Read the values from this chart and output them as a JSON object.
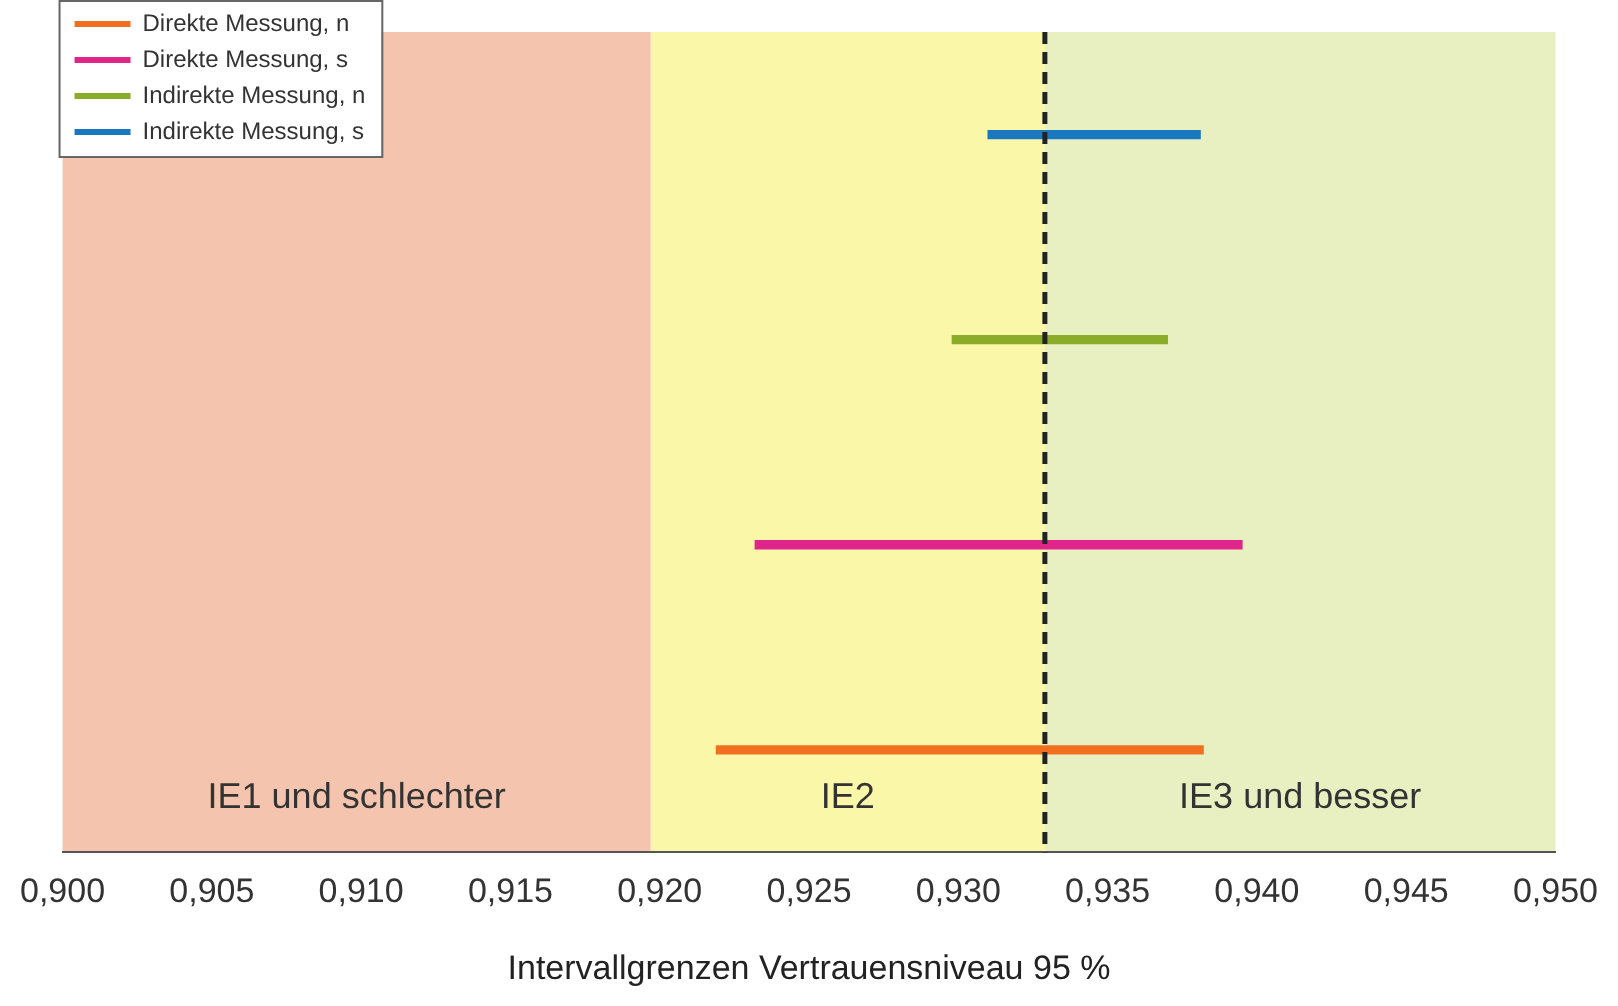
{
  "chart_data": {
    "type": "bar",
    "orientation": "horizontal",
    "xlabel": "Intervallgrenzen Vertrauensniveau 95 %",
    "categories": [
      null,
      null,
      null,
      null
    ],
    "series": [
      {
        "name": "Direkte Messung, n",
        "color": "#f07020",
        "base": [
          null,
          null,
          null,
          0.9219
        ],
        "values": [
          null,
          null,
          null,
          0.0163
        ]
      },
      {
        "name": "Direkte Messung, s",
        "color": "#e0258a",
        "base": [
          null,
          null,
          0.9232,
          null
        ],
        "values": [
          null,
          null,
          0.0163,
          null
        ]
      },
      {
        "name": "Indirekte Messung, n",
        "color": "#8aac28",
        "base": [
          null,
          0.9298,
          null,
          null
        ],
        "values": [
          null,
          0.0072,
          null,
          null
        ]
      },
      {
        "name": "Indirekte Messung, s",
        "color": "#1a78c0",
        "base": [
          0.931,
          null,
          null,
          null
        ],
        "values": [
          0.0071,
          null,
          null,
          null
        ]
      }
    ],
    "xlim": [
      0.9,
      0.95
    ],
    "xticks": [
      {
        "value": 0.9,
        "label": "0,900"
      },
      {
        "value": 0.905,
        "label": "0,905"
      },
      {
        "value": 0.91,
        "label": "0,910"
      },
      {
        "value": 0.915,
        "label": "0,915"
      },
      {
        "value": 0.92,
        "label": "0,920"
      },
      {
        "value": 0.925,
        "label": "0,925"
      },
      {
        "value": 0.93,
        "label": "0,930"
      },
      {
        "value": 0.935,
        "label": "0,935"
      },
      {
        "value": 0.94,
        "label": "0,940"
      },
      {
        "value": 0.945,
        "label": "0,945"
      },
      {
        "value": 0.95,
        "label": "0,950"
      }
    ],
    "bands": [
      {
        "axis": "x",
        "from": 0.9,
        "to": 0.9197,
        "label": "IE1 und schlechter",
        "color": "#f5c4ae"
      },
      {
        "axis": "x",
        "from": 0.9197,
        "to": 0.9329,
        "label": "IE2",
        "color": "#fbf7a8"
      },
      {
        "axis": "x",
        "from": 0.9329,
        "to": 0.95,
        "label": "IE3 und besser",
        "color": "#e8f0c2"
      }
    ],
    "ref_lines": [
      {
        "axis": "x",
        "value": 0.9329,
        "color": "#222222",
        "line_style": "dashed"
      }
    ],
    "legend": "top left",
    "grid": false,
    "tick_labels": "x"
  }
}
